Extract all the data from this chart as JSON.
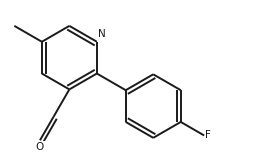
{
  "bg_color": "#ffffff",
  "line_color": "#1a1a1a",
  "line_width": 1.4,
  "figure_size": [
    2.54,
    1.52
  ],
  "dpi": 100,
  "xlim": [
    0,
    1.0
  ],
  "ylim": [
    0,
    0.6
  ]
}
